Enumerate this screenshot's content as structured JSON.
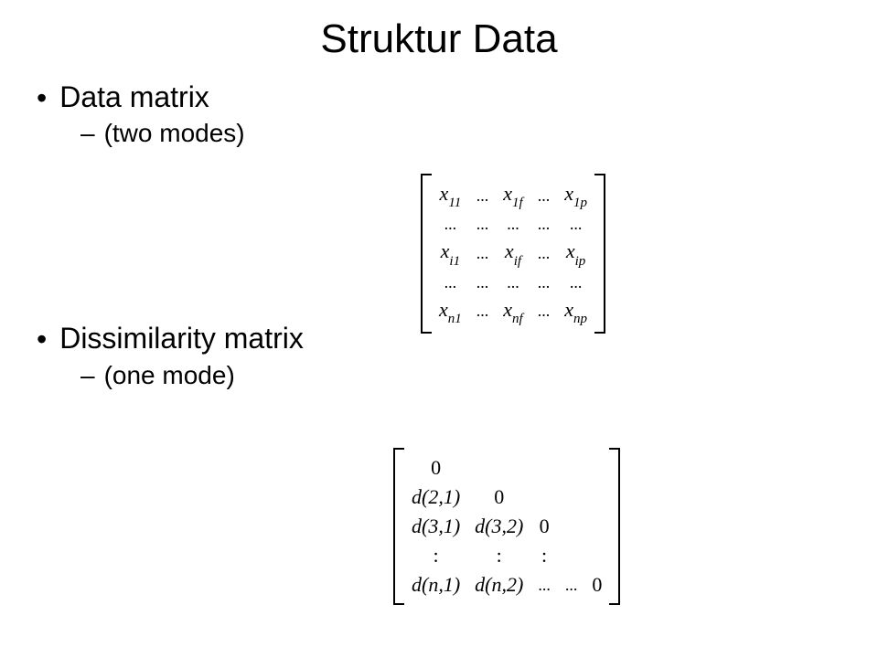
{
  "title": "Struktur Data",
  "section1": {
    "heading": "Data matrix",
    "sub": "(two modes)",
    "matrix": {
      "rows": [
        [
          {
            "t": "x",
            "s": "11"
          },
          {
            "d": "..."
          },
          {
            "t": "x",
            "s": "1f"
          },
          {
            "d": "..."
          },
          {
            "t": "x",
            "s": "1p"
          }
        ],
        [
          {
            "d": "..."
          },
          {
            "d": "..."
          },
          {
            "d": "..."
          },
          {
            "d": "..."
          },
          {
            "d": "..."
          }
        ],
        [
          {
            "t": "x",
            "s": "i1"
          },
          {
            "d": "..."
          },
          {
            "t": "x",
            "s": "if"
          },
          {
            "d": "..."
          },
          {
            "t": "x",
            "s": "ip"
          }
        ],
        [
          {
            "d": "..."
          },
          {
            "d": "..."
          },
          {
            "d": "..."
          },
          {
            "d": "..."
          },
          {
            "d": "..."
          }
        ],
        [
          {
            "t": "x",
            "s": "n1"
          },
          {
            "d": "..."
          },
          {
            "t": "x",
            "s": "nf"
          },
          {
            "d": "..."
          },
          {
            "t": "x",
            "s": "np"
          }
        ]
      ]
    }
  },
  "section2": {
    "heading": "Dissimilarity matrix",
    "sub": "(one mode)",
    "matrix": {
      "rows": [
        [
          {
            "u": "0"
          },
          {
            "e": ""
          },
          {
            "e": ""
          },
          {
            "e": ""
          },
          {
            "e": ""
          }
        ],
        [
          {
            "t": "d(2,1)"
          },
          {
            "u": "0"
          },
          {
            "e": ""
          },
          {
            "e": ""
          },
          {
            "e": ""
          }
        ],
        [
          {
            "t": "d(3,1)"
          },
          {
            "t": "d(3,2)"
          },
          {
            "u": "0"
          },
          {
            "e": ""
          },
          {
            "e": ""
          }
        ],
        [
          {
            "u": ":"
          },
          {
            "u": ":"
          },
          {
            "u": ":"
          },
          {
            "e": ""
          },
          {
            "e": ""
          }
        ],
        [
          {
            "t": "d(n,1)"
          },
          {
            "t": "d(n,2)"
          },
          {
            "d": "..."
          },
          {
            "d": "..."
          },
          {
            "u": "0"
          }
        ]
      ]
    }
  }
}
